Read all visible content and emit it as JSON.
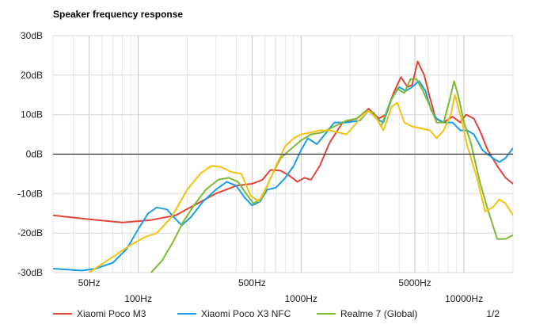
{
  "chart_data": {
    "type": "line",
    "title": "Speaker frequency response",
    "xlabel": "",
    "ylabel": "",
    "x_scale": "log",
    "xlim": [
      30,
      20000
    ],
    "ylim": [
      -30,
      30
    ],
    "y_ticks": [
      {
        "value": 30,
        "label": "30dB"
      },
      {
        "value": 20,
        "label": "20dB"
      },
      {
        "value": 10,
        "label": "10dB"
      },
      {
        "value": 0,
        "label": "0dB"
      },
      {
        "value": -10,
        "label": "-10dB"
      },
      {
        "value": -20,
        "label": "-20dB"
      },
      {
        "value": -30,
        "label": "-30dB"
      }
    ],
    "x_ticks": [
      {
        "value": 50,
        "label": "50Hz",
        "row": 1
      },
      {
        "value": 100,
        "label": "100Hz",
        "row": 2
      },
      {
        "value": 500,
        "label": "500Hz",
        "row": 1
      },
      {
        "value": 1000,
        "label": "1000Hz",
        "row": 2
      },
      {
        "value": 5000,
        "label": "5000Hz",
        "row": 1
      },
      {
        "value": 10000,
        "label": "10000Hz",
        "row": 2
      }
    ],
    "grid": true,
    "legend_position": "bottom",
    "legend_page": "1/2",
    "series": [
      {
        "name": "Xiaomi Poco M3",
        "color": "#e0453a",
        "points": [
          [
            30,
            -15.5
          ],
          [
            50,
            -16.5
          ],
          [
            80,
            -17.3
          ],
          [
            120,
            -16.7
          ],
          [
            170,
            -15.5
          ],
          [
            220,
            -13
          ],
          [
            300,
            -10
          ],
          [
            400,
            -8
          ],
          [
            500,
            -7.5
          ],
          [
            580,
            -6.5
          ],
          [
            650,
            -4
          ],
          [
            750,
            -4.2
          ],
          [
            850,
            -5.5
          ],
          [
            950,
            -7
          ],
          [
            1050,
            -6
          ],
          [
            1150,
            -6.5
          ],
          [
            1300,
            -3
          ],
          [
            1500,
            3
          ],
          [
            1800,
            8
          ],
          [
            2200,
            9
          ],
          [
            2600,
            11.5
          ],
          [
            3000,
            9
          ],
          [
            3300,
            10
          ],
          [
            3700,
            15.5
          ],
          [
            4100,
            19.5
          ],
          [
            4500,
            17
          ],
          [
            4800,
            17.5
          ],
          [
            5200,
            23.5
          ],
          [
            5700,
            20
          ],
          [
            6200,
            14
          ],
          [
            6700,
            9
          ],
          [
            7500,
            8
          ],
          [
            8500,
            9.5
          ],
          [
            9500,
            8
          ],
          [
            10300,
            10
          ],
          [
            11500,
            9
          ],
          [
            12500,
            6
          ],
          [
            14000,
            1
          ],
          [
            16000,
            -3
          ],
          [
            18000,
            -6
          ],
          [
            20000,
            -7.5
          ]
        ]
      },
      {
        "name": "Xiaomi Poco X3 NFC",
        "color": "#1a9ee6",
        "points": [
          [
            30,
            -29
          ],
          [
            45,
            -29.5
          ],
          [
            55,
            -29
          ],
          [
            70,
            -27.5
          ],
          [
            85,
            -24
          ],
          [
            100,
            -19
          ],
          [
            115,
            -15
          ],
          [
            130,
            -13.5
          ],
          [
            150,
            -14
          ],
          [
            170,
            -16.5
          ],
          [
            185,
            -18
          ],
          [
            210,
            -16
          ],
          [
            250,
            -12
          ],
          [
            300,
            -9
          ],
          [
            350,
            -7
          ],
          [
            400,
            -8
          ],
          [
            450,
            -11
          ],
          [
            500,
            -13
          ],
          [
            560,
            -12
          ],
          [
            620,
            -9
          ],
          [
            700,
            -8.5
          ],
          [
            800,
            -6
          ],
          [
            900,
            -3
          ],
          [
            1000,
            1
          ],
          [
            1100,
            4
          ],
          [
            1250,
            2.5
          ],
          [
            1400,
            5
          ],
          [
            1600,
            8
          ],
          [
            1900,
            8
          ],
          [
            2300,
            8.5
          ],
          [
            2600,
            11
          ],
          [
            2900,
            9
          ],
          [
            3200,
            8
          ],
          [
            3600,
            14
          ],
          [
            4000,
            17
          ],
          [
            4400,
            16
          ],
          [
            4800,
            17
          ],
          [
            5300,
            18.5
          ],
          [
            5800,
            16
          ],
          [
            6300,
            11
          ],
          [
            6800,
            9
          ],
          [
            7500,
            8
          ],
          [
            8500,
            8
          ],
          [
            9500,
            6
          ],
          [
            10500,
            6
          ],
          [
            11500,
            5
          ],
          [
            13000,
            1
          ],
          [
            15000,
            -1
          ],
          [
            16500,
            -2
          ],
          [
            18000,
            -1
          ],
          [
            20000,
            1.5
          ]
        ]
      },
      {
        "name": "Realme 7 (Global)",
        "color": "#7fba35",
        "points": [
          [
            120,
            -30
          ],
          [
            140,
            -27
          ],
          [
            165,
            -22
          ],
          [
            190,
            -17
          ],
          [
            220,
            -13
          ],
          [
            260,
            -9
          ],
          [
            310,
            -6.5
          ],
          [
            360,
            -6
          ],
          [
            410,
            -7
          ],
          [
            460,
            -10
          ],
          [
            510,
            -12.5
          ],
          [
            580,
            -11
          ],
          [
            650,
            -6
          ],
          [
            750,
            -1
          ],
          [
            850,
            1
          ],
          [
            1000,
            3.5
          ],
          [
            1150,
            5
          ],
          [
            1350,
            5.5
          ],
          [
            1600,
            7
          ],
          [
            1900,
            8.5
          ],
          [
            2200,
            9
          ],
          [
            2500,
            11
          ],
          [
            2800,
            10.5
          ],
          [
            3100,
            7
          ],
          [
            3500,
            13
          ],
          [
            3900,
            16.5
          ],
          [
            4300,
            15.5
          ],
          [
            4700,
            19
          ],
          [
            5100,
            19
          ],
          [
            5600,
            16
          ],
          [
            6200,
            12
          ],
          [
            6800,
            8
          ],
          [
            7500,
            8
          ],
          [
            8200,
            14
          ],
          [
            8700,
            18.5
          ],
          [
            9200,
            15
          ],
          [
            10000,
            8
          ],
          [
            11000,
            3
          ],
          [
            12500,
            -7
          ],
          [
            14000,
            -14
          ],
          [
            16000,
            -21.5
          ],
          [
            18000,
            -21.5
          ],
          [
            20000,
            -20.5
          ]
        ]
      },
      {
        "name": "",
        "color": "#f5c211",
        "points": [
          [
            50,
            -30
          ],
          [
            70,
            -26
          ],
          [
            90,
            -23
          ],
          [
            110,
            -21
          ],
          [
            130,
            -20
          ],
          [
            160,
            -16
          ],
          [
            200,
            -9
          ],
          [
            240,
            -5
          ],
          [
            280,
            -3
          ],
          [
            320,
            -3.2
          ],
          [
            370,
            -4.5
          ],
          [
            430,
            -5
          ],
          [
            490,
            -10.5
          ],
          [
            550,
            -12
          ],
          [
            620,
            -8
          ],
          [
            700,
            -3
          ],
          [
            800,
            2
          ],
          [
            900,
            4
          ],
          [
            1000,
            5
          ],
          [
            1150,
            5.5
          ],
          [
            1300,
            6
          ],
          [
            1500,
            6
          ],
          [
            1700,
            5.5
          ],
          [
            1900,
            5
          ],
          [
            2200,
            8
          ],
          [
            2600,
            11
          ],
          [
            2900,
            9
          ],
          [
            3200,
            6
          ],
          [
            3600,
            12
          ],
          [
            3900,
            13
          ],
          [
            4300,
            8
          ],
          [
            4800,
            7
          ],
          [
            5500,
            6.5
          ],
          [
            6200,
            6
          ],
          [
            6800,
            4
          ],
          [
            7500,
            6
          ],
          [
            8300,
            10
          ],
          [
            8800,
            15
          ],
          [
            9500,
            10
          ],
          [
            10500,
            2
          ],
          [
            12000,
            -6
          ],
          [
            13500,
            -14.5
          ],
          [
            15000,
            -13.5
          ],
          [
            16500,
            -11.5
          ],
          [
            18000,
            -12.5
          ],
          [
            20000,
            -15.5
          ]
        ]
      }
    ]
  }
}
